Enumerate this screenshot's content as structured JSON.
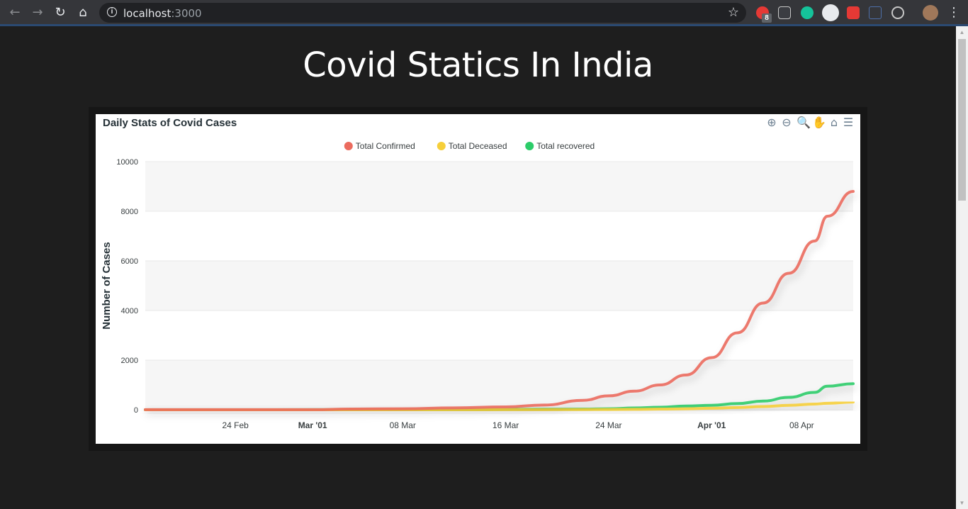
{
  "browser": {
    "url_host": "localhost",
    "url_port": ":3000",
    "extension_badge": "8"
  },
  "page": {
    "title": "Covid Statics In India"
  },
  "chart_data": {
    "type": "line",
    "title": "Daily Stats of Covid Cases",
    "xlabel": "",
    "ylabel": "Number of Cases",
    "ylim": [
      0,
      10000
    ],
    "yticks": [
      0,
      2000,
      4000,
      6000,
      8000,
      10000
    ],
    "xlim": [
      "2020-02-17",
      "2020-04-12"
    ],
    "xticks": [
      {
        "date": "2020-02-24",
        "label": "24 Feb",
        "bold": false
      },
      {
        "date": "2020-03-01",
        "label": "Mar '01",
        "bold": true
      },
      {
        "date": "2020-03-08",
        "label": "08 Mar",
        "bold": false
      },
      {
        "date": "2020-03-16",
        "label": "16 Mar",
        "bold": false
      },
      {
        "date": "2020-03-24",
        "label": "24 Mar",
        "bold": false
      },
      {
        "date": "2020-04-01",
        "label": "Apr '01",
        "bold": true
      },
      {
        "date": "2020-04-08",
        "label": "08 Apr",
        "bold": false
      }
    ],
    "grid": true,
    "legend_position": "top-center",
    "x": [
      "2020-02-17",
      "2020-02-24",
      "2020-03-01",
      "2020-03-04",
      "2020-03-08",
      "2020-03-12",
      "2020-03-16",
      "2020-03-19",
      "2020-03-22",
      "2020-03-24",
      "2020-03-26",
      "2020-03-28",
      "2020-03-30",
      "2020-04-01",
      "2020-04-03",
      "2020-04-05",
      "2020-04-07",
      "2020-04-09",
      "2020-04-10",
      "2020-04-12"
    ],
    "series": [
      {
        "name": "Total Confirmed",
        "color": "#eb6b5e",
        "values": [
          3,
          3,
          3,
          28,
          40,
          75,
          115,
          190,
          380,
          560,
          750,
          1000,
          1400,
          2100,
          3100,
          4300,
          5500,
          6800,
          7800,
          8800
        ]
      },
      {
        "name": "Total Deceased",
        "color": "#f6cf3a",
        "values": [
          0,
          0,
          0,
          0,
          0,
          1,
          2,
          4,
          7,
          11,
          17,
          27,
          40,
          60,
          90,
          130,
          180,
          230,
          260,
          310
        ]
      },
      {
        "name": "Total recovered",
        "color": "#2ccc69",
        "values": [
          0,
          0,
          3,
          3,
          3,
          10,
          15,
          20,
          25,
          40,
          70,
          100,
          150,
          180,
          250,
          350,
          500,
          700,
          950,
          1050
        ]
      }
    ]
  }
}
